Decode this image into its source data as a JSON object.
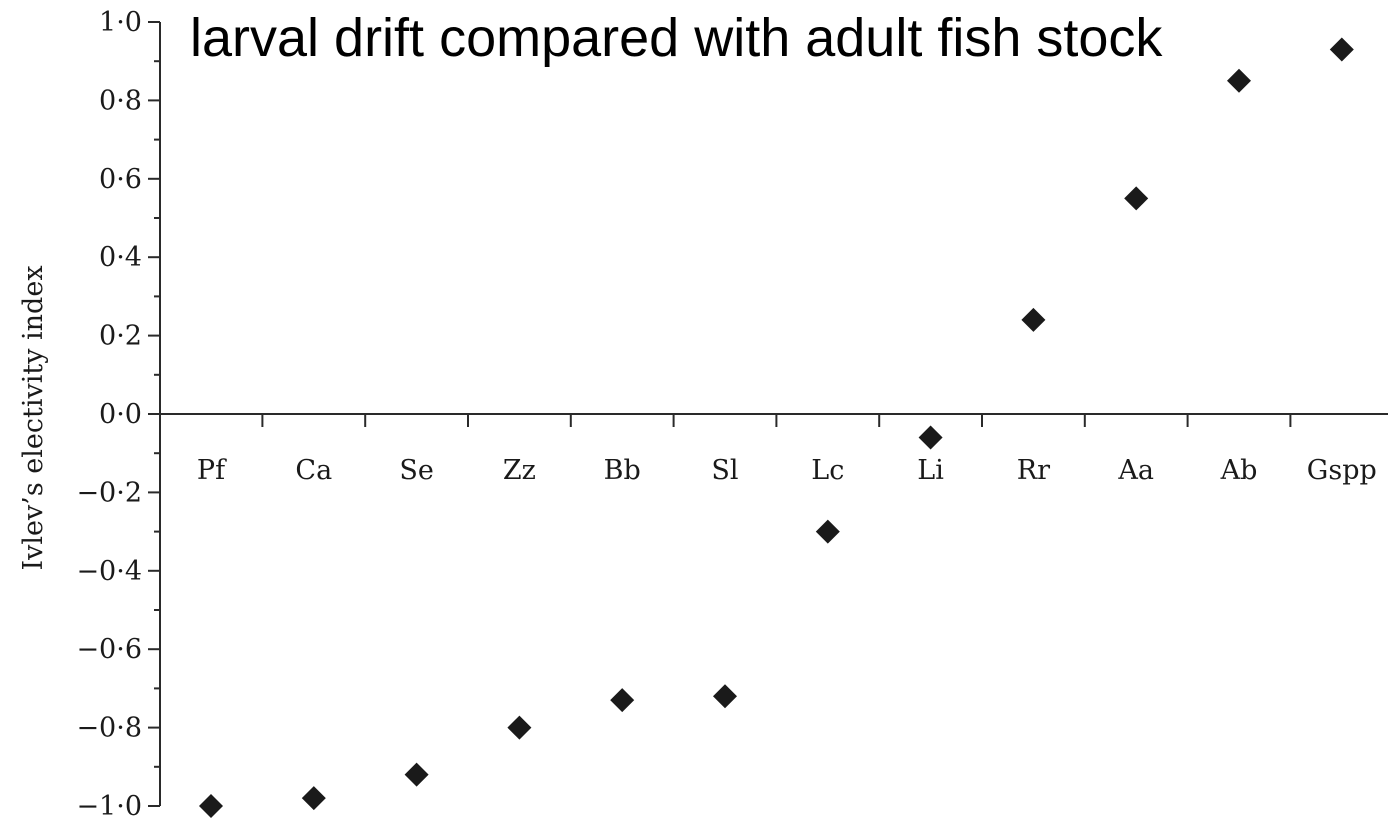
{
  "chart_data": {
    "type": "scatter",
    "title": "larval drift compared with adult fish stock",
    "xlabel": "",
    "ylabel": "Ivlev’s electivity index",
    "categories": [
      "Pf",
      "Ca",
      "Se",
      "Zz",
      "Bb",
      "Sl",
      "Lc",
      "Li",
      "Rr",
      "Aa",
      "Ab",
      "Gspp"
    ],
    "values": [
      -1.0,
      -0.98,
      -0.92,
      -0.8,
      -0.73,
      -0.72,
      -0.3,
      -0.06,
      0.24,
      0.55,
      0.85,
      0.93
    ],
    "ylim": [
      -1.0,
      1.0
    ],
    "y_ticks": [
      "1·0",
      "0·8",
      "0·6",
      "0·4",
      "0·2",
      "0·0",
      "−0·2",
      "−0·4",
      "−0·6",
      "−0·8",
      "−1·0"
    ],
    "y_tick_values": [
      1.0,
      0.8,
      0.6,
      0.4,
      0.2,
      0.0,
      -0.2,
      -0.4,
      -0.6,
      -0.8,
      -1.0
    ],
    "marker": "diamond",
    "marker_color": "#1a1a1a",
    "grid": false,
    "legend": "none"
  }
}
